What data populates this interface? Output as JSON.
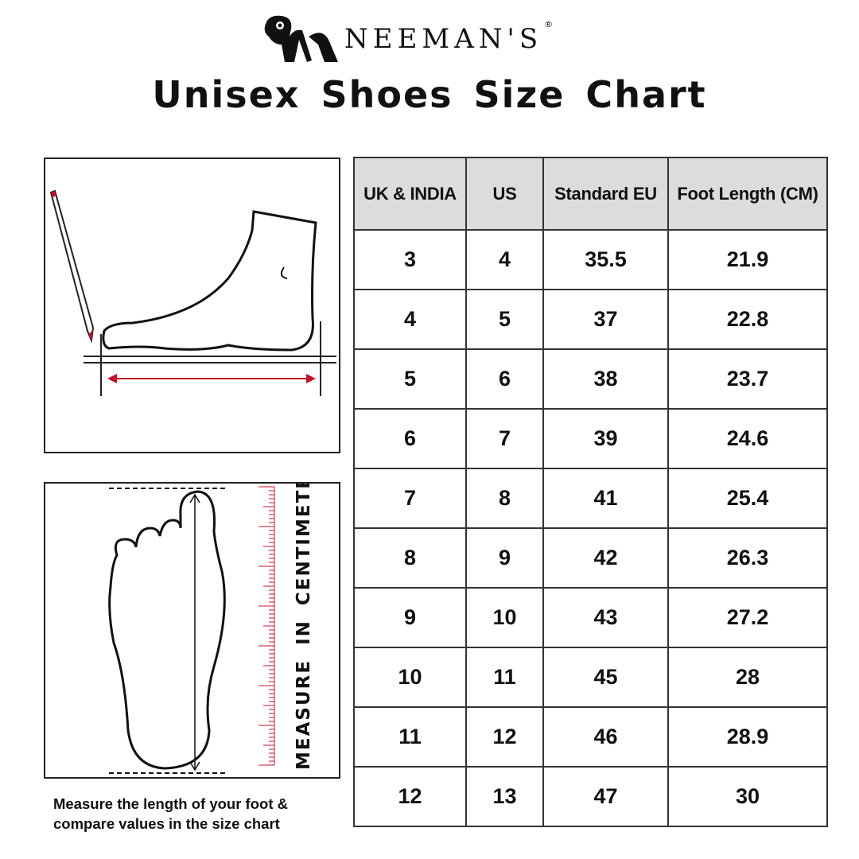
{
  "brand": {
    "name": "NEEMAN'S",
    "registered": "®"
  },
  "title": "Unisex Shoes Size Chart",
  "colors": {
    "ruler": "#c0102a",
    "header_bg": "#dcdcdc",
    "arrow": "#c0102a"
  },
  "instructions": {
    "ruler_label": "MEASURE IN CENTIMETERS",
    "caption_line1": "Measure the length of your foot &",
    "caption_line2": "compare values in the size chart"
  },
  "table": {
    "headers": [
      "UK & INDIA",
      "US",
      "Standard EU",
      "Foot Length (CM)"
    ],
    "rows": [
      [
        "3",
        "4",
        "35.5",
        "21.9"
      ],
      [
        "4",
        "5",
        "37",
        "22.8"
      ],
      [
        "5",
        "6",
        "38",
        "23.7"
      ],
      [
        "6",
        "7",
        "39",
        "24.6"
      ],
      [
        "7",
        "8",
        "41",
        "25.4"
      ],
      [
        "8",
        "9",
        "42",
        "26.3"
      ],
      [
        "9",
        "10",
        "43",
        "27.2"
      ],
      [
        "10",
        "11",
        "45",
        "28"
      ],
      [
        "11",
        "12",
        "46",
        "28.9"
      ],
      [
        "12",
        "13",
        "47",
        "30"
      ]
    ]
  }
}
